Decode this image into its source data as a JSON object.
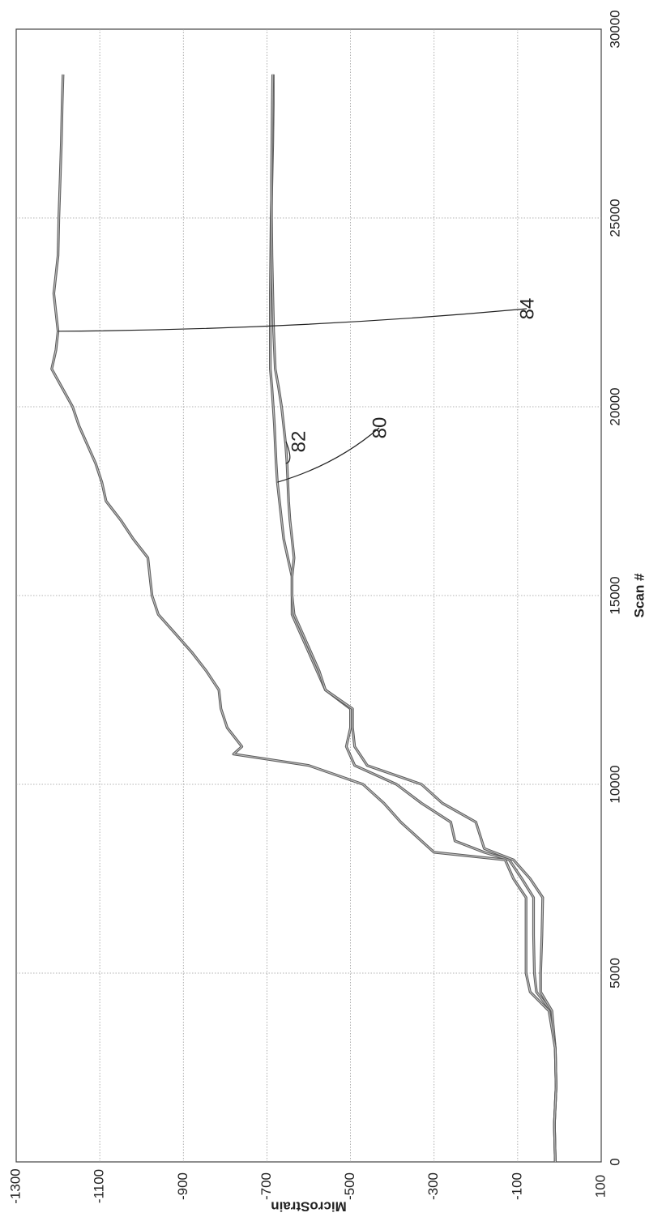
{
  "chart_data": {
    "type": "line",
    "title": "",
    "xlabel": "Scan #",
    "ylabel": "MicroStrain",
    "xlim": [
      0,
      30000
    ],
    "ylim": [
      -1300,
      100
    ],
    "x_ticks": [
      "0",
      "5000",
      "10000",
      "15000",
      "20000",
      "25000",
      "30000"
    ],
    "y_ticks": [
      "100",
      "-100",
      "-300",
      "-500",
      "-700",
      "-900",
      "-1100",
      "-1300"
    ],
    "grid": true,
    "orientation": "rotated-90",
    "legend": "none",
    "series": [
      {
        "name": "80",
        "points": [
          [
            0,
            -10
          ],
          [
            1000,
            -12
          ],
          [
            2000,
            -8
          ],
          [
            3000,
            -10
          ],
          [
            4000,
            -20
          ],
          [
            4500,
            -55
          ],
          [
            5000,
            -60
          ],
          [
            6000,
            -62
          ],
          [
            7000,
            -62
          ],
          [
            7500,
            -90
          ],
          [
            8000,
            -120
          ],
          [
            8200,
            -180
          ],
          [
            8500,
            -250
          ],
          [
            9000,
            -260
          ],
          [
            9500,
            -330
          ],
          [
            10000,
            -390
          ],
          [
            10500,
            -490
          ],
          [
            11000,
            -510
          ],
          [
            11500,
            -500
          ],
          [
            12000,
            -500
          ],
          [
            12500,
            -560
          ],
          [
            13000,
            -580
          ],
          [
            13500,
            -600
          ],
          [
            14000,
            -620
          ],
          [
            14500,
            -640
          ],
          [
            15000,
            -640
          ],
          [
            15500,
            -640
          ],
          [
            16000,
            -650
          ],
          [
            16500,
            -660
          ],
          [
            17000,
            -665
          ],
          [
            17500,
            -670
          ],
          [
            18000,
            -675
          ],
          [
            18500,
            -678
          ],
          [
            19000,
            -680
          ],
          [
            19500,
            -682
          ],
          [
            20000,
            -685
          ],
          [
            20500,
            -688
          ],
          [
            21000,
            -692
          ],
          [
            22000,
            -692
          ],
          [
            23000,
            -692
          ],
          [
            24000,
            -691
          ],
          [
            25000,
            -690
          ],
          [
            26000,
            -688
          ],
          [
            27000,
            -686
          ],
          [
            28000,
            -685
          ],
          [
            28800,
            -685
          ]
        ]
      },
      {
        "name": "82",
        "points": [
          [
            0,
            -10
          ],
          [
            1000,
            -12
          ],
          [
            2000,
            -8
          ],
          [
            3000,
            -10
          ],
          [
            4000,
            -18
          ],
          [
            4500,
            -45
          ],
          [
            5000,
            -45
          ],
          [
            6000,
            -42
          ],
          [
            7000,
            -40
          ],
          [
            7500,
            -70
          ],
          [
            8000,
            -110
          ],
          [
            8300,
            -180
          ],
          [
            9000,
            -200
          ],
          [
            9500,
            -280
          ],
          [
            10000,
            -330
          ],
          [
            10500,
            -460
          ],
          [
            11000,
            -490
          ],
          [
            11500,
            -495
          ],
          [
            12000,
            -495
          ],
          [
            12500,
            -560
          ],
          [
            13000,
            -575
          ],
          [
            13500,
            -595
          ],
          [
            14000,
            -615
          ],
          [
            14500,
            -635
          ],
          [
            15000,
            -640
          ],
          [
            15500,
            -640
          ],
          [
            16000,
            -635
          ],
          [
            16500,
            -640
          ],
          [
            17000,
            -645
          ],
          [
            17500,
            -648
          ],
          [
            18000,
            -650
          ],
          [
            18500,
            -652
          ],
          [
            19000,
            -655
          ],
          [
            19500,
            -660
          ],
          [
            20000,
            -665
          ],
          [
            20500,
            -672
          ],
          [
            21000,
            -680
          ],
          [
            22000,
            -684
          ],
          [
            23000,
            -686
          ],
          [
            24000,
            -688
          ],
          [
            25000,
            -689
          ],
          [
            26000,
            -689
          ],
          [
            27000,
            -688
          ],
          [
            28000,
            -687
          ],
          [
            28800,
            -686
          ]
        ]
      },
      {
        "name": "84",
        "points": [
          [
            0,
            -10
          ],
          [
            1000,
            -12
          ],
          [
            2000,
            -8
          ],
          [
            3000,
            -10
          ],
          [
            4000,
            -25
          ],
          [
            4500,
            -70
          ],
          [
            5000,
            -80
          ],
          [
            6000,
            -80
          ],
          [
            7000,
            -80
          ],
          [
            7500,
            -110
          ],
          [
            8000,
            -130
          ],
          [
            8200,
            -300
          ],
          [
            8500,
            -330
          ],
          [
            9000,
            -380
          ],
          [
            9500,
            -420
          ],
          [
            10000,
            -470
          ],
          [
            10500,
            -600
          ],
          [
            10800,
            -780
          ],
          [
            11000,
            -760
          ],
          [
            11500,
            -795
          ],
          [
            12000,
            -810
          ],
          [
            12500,
            -815
          ],
          [
            13000,
            -845
          ],
          [
            13500,
            -880
          ],
          [
            14000,
            -920
          ],
          [
            14500,
            -960
          ],
          [
            15000,
            -975
          ],
          [
            15500,
            -980
          ],
          [
            16000,
            -985
          ],
          [
            16500,
            -1020
          ],
          [
            17000,
            -1050
          ],
          [
            17500,
            -1085
          ],
          [
            18000,
            -1095
          ],
          [
            18500,
            -1110
          ],
          [
            19000,
            -1130
          ],
          [
            19500,
            -1150
          ],
          [
            20000,
            -1165
          ],
          [
            20500,
            -1190
          ],
          [
            21000,
            -1215
          ],
          [
            21500,
            -1205
          ],
          [
            22000,
            -1200
          ],
          [
            22500,
            -1205
          ],
          [
            23000,
            -1210
          ],
          [
            23500,
            -1205
          ],
          [
            24000,
            -1200
          ],
          [
            25000,
            -1198
          ],
          [
            26000,
            -1195
          ],
          [
            27000,
            -1192
          ],
          [
            28000,
            -1190
          ],
          [
            28800,
            -1188
          ]
        ]
      }
    ],
    "reference_labels": [
      "82",
      "80",
      "84"
    ]
  },
  "colors": {
    "line": "#5a5a5a",
    "grid": "#9a9a9a",
    "frame": "#444444"
  }
}
